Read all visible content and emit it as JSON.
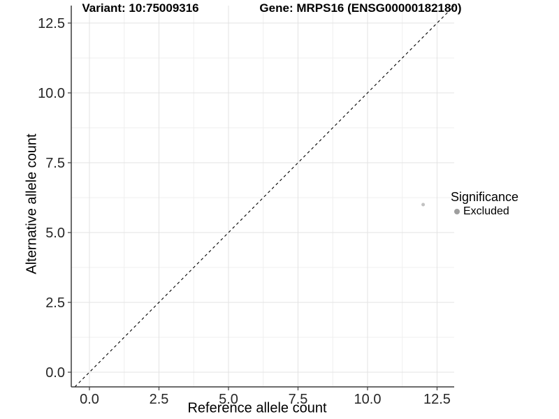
{
  "titles": {
    "left": "Variant: 10:75009316",
    "right": "Gene: MRPS16 (ENSG00000182180)"
  },
  "legend": {
    "title": "Significance",
    "items": [
      {
        "label": "Excluded",
        "color": "#9e9e9e"
      }
    ]
  },
  "chart_data": {
    "type": "scatter",
    "title": "Variant: 10:75009316   Gene: MRPS16 (ENSG00000182180)",
    "xlabel": "Reference allele count",
    "ylabel": "Alternative allele count",
    "xlim": [
      -0.653,
      13.116
    ],
    "ylim": [
      -0.525,
      13.125
    ],
    "x_tick_values": [
      0,
      2.5,
      5,
      7.5,
      10,
      12.5
    ],
    "x_tick_labels": [
      "0.0",
      "2.5",
      "5.0",
      "7.5",
      "10.0",
      "12.5"
    ],
    "y_tick_values": [
      0,
      2.5,
      5,
      7.5,
      10,
      12.5
    ],
    "y_tick_labels": [
      "0.0",
      "2.5",
      "5.0",
      "7.5",
      "10.0",
      "12.5"
    ],
    "minor_tick_values": [
      1.25,
      3.75,
      6.25,
      8.75,
      11.25
    ],
    "grid": {
      "major_color": "#e3e3e3",
      "minor_color": "#efefef",
      "enabled": true
    },
    "axis_color": "#3c3c3c",
    "tick_label_color": "#262626",
    "identity_line": {
      "slope": 1,
      "intercept": 0,
      "style": "dashed",
      "color": "#000000"
    },
    "series": [
      {
        "name": "Excluded",
        "color": "#c2c2c2",
        "point_radius": 2.5,
        "points": [
          {
            "x": 12,
            "y": 6
          }
        ]
      }
    ],
    "legend_position": "right"
  }
}
